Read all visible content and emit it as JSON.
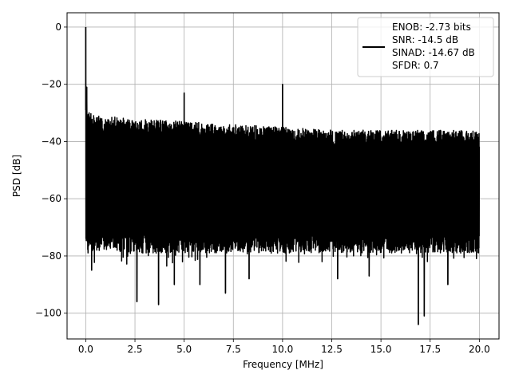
{
  "chart_data": {
    "type": "line",
    "title": "",
    "xlabel": "Frequency [MHz]",
    "ylabel": "PSD [dB]",
    "xlim": [
      -0.95,
      21.0
    ],
    "ylim": [
      -109,
      5
    ],
    "x_ticks": [
      0.0,
      2.5,
      5.0,
      7.5,
      10.0,
      12.5,
      15.0,
      17.5,
      20.0
    ],
    "x_tick_labels": [
      "0.0",
      "2.5",
      "5.0",
      "7.5",
      "10.0",
      "12.5",
      "15.0",
      "17.5",
      "20.0"
    ],
    "y_ticks": [
      0,
      -20,
      -40,
      -60,
      -80,
      -100
    ],
    "y_tick_labels": [
      "0",
      "−20",
      "−40",
      "−60",
      "−80",
      "−100"
    ],
    "grid": true,
    "legend_position": "top-right",
    "series": [
      {
        "color": "#000000",
        "x_range": [
          0.0,
          20.0
        ],
        "noise_band": {
          "upper_envelope": [
            {
              "x": 0.0,
              "y": -27
            },
            {
              "x": 0.5,
              "y": -30
            },
            {
              "x": 2.5,
              "y": -31
            },
            {
              "x": 5.0,
              "y": -32
            },
            {
              "x": 7.5,
              "y": -33
            },
            {
              "x": 10.0,
              "y": -34
            },
            {
              "x": 12.5,
              "y": -35
            },
            {
              "x": 15.0,
              "y": -35
            },
            {
              "x": 17.5,
              "y": -35
            },
            {
              "x": 20.0,
              "y": -35
            }
          ],
          "typical_low": -75
        },
        "peaks": [
          {
            "x": 0.0,
            "y": 0
          },
          {
            "x": 0.05,
            "y": -21
          },
          {
            "x": 5.0,
            "y": -23
          },
          {
            "x": 10.0,
            "y": -20
          }
        ],
        "dips": [
          {
            "x": 0.3,
            "y": -85
          },
          {
            "x": 2.6,
            "y": -96
          },
          {
            "x": 3.7,
            "y": -97
          },
          {
            "x": 4.5,
            "y": -90
          },
          {
            "x": 5.8,
            "y": -90
          },
          {
            "x": 7.1,
            "y": -93
          },
          {
            "x": 8.3,
            "y": -88
          },
          {
            "x": 12.8,
            "y": -88
          },
          {
            "x": 14.4,
            "y": -87
          },
          {
            "x": 16.9,
            "y": -104
          },
          {
            "x": 17.2,
            "y": -101
          },
          {
            "x": 18.4,
            "y": -90
          }
        ]
      }
    ],
    "legend": {
      "lines": [
        "ENOB: -2.73 bits",
        "SNR: -14.5 dB",
        "SINAD: -14.67 dB",
        "SFDR: 0.7"
      ]
    }
  }
}
